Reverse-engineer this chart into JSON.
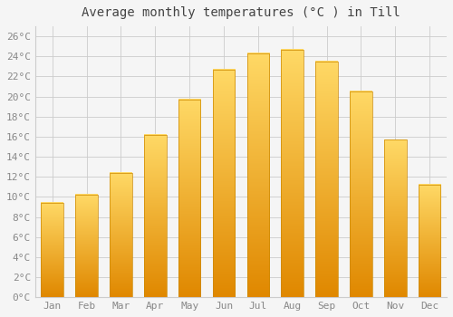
{
  "months": [
    "Jan",
    "Feb",
    "Mar",
    "Apr",
    "May",
    "Jun",
    "Jul",
    "Aug",
    "Sep",
    "Oct",
    "Nov",
    "Dec"
  ],
  "temperatures": [
    9.4,
    10.2,
    12.4,
    16.2,
    19.7,
    22.7,
    24.3,
    24.7,
    23.5,
    20.5,
    15.7,
    11.2
  ],
  "title": "Average monthly temperatures (°C ) in Till",
  "ylim": [
    0,
    27
  ],
  "yticks": [
    0,
    2,
    4,
    6,
    8,
    10,
    12,
    14,
    16,
    18,
    20,
    22,
    24,
    26
  ],
  "ytick_labels": [
    "0°C",
    "2°C",
    "4°C",
    "6°C",
    "8°C",
    "10°C",
    "12°C",
    "14°C",
    "16°C",
    "18°C",
    "20°C",
    "22°C",
    "24°C",
    "26°C"
  ],
  "bar_color_light": "#FFD966",
  "bar_color_mid": "#FFAA00",
  "bar_color_dark": "#E08800",
  "bar_edge_color": "#CC8800",
  "background_color": "#f5f5f5",
  "plot_bg_color": "#f5f5f5",
  "grid_color": "#cccccc",
  "title_fontsize": 10,
  "tick_fontsize": 8,
  "title_color": "#444444",
  "tick_color": "#888888"
}
